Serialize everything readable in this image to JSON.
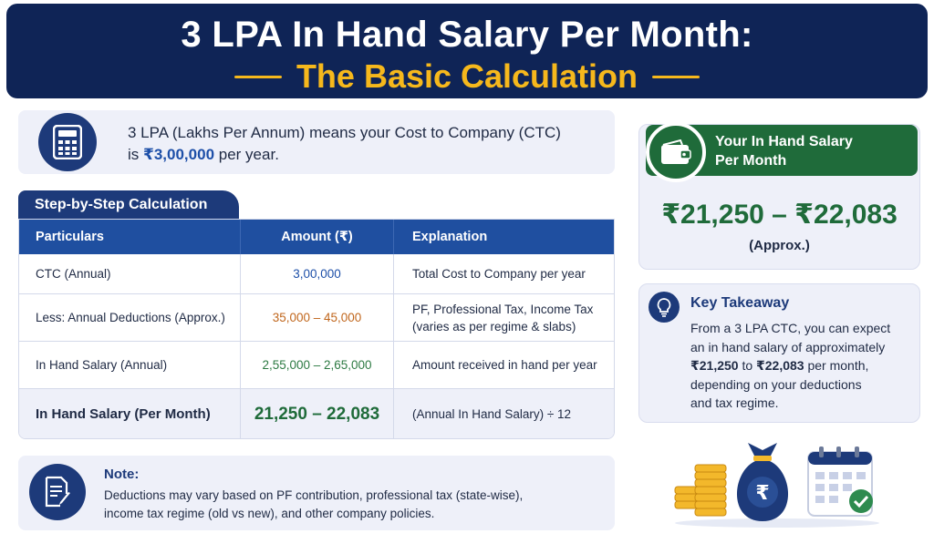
{
  "header": {
    "title": "3 LPA In Hand Salary Per Month:",
    "subtitle": "The Basic Calculation"
  },
  "intro": {
    "line1": "3 LPA (Lakhs Per Annum) means your Cost to Company (CTC)",
    "prefix": "is",
    "amount": "₹3,00,000",
    "suffix": "per year.",
    "icon": "calculator-icon"
  },
  "table": {
    "tab_label": "Step-by-Step Calculation",
    "headers": [
      "Particulars",
      "Amount (₹)",
      "Explanation"
    ],
    "rows": [
      {
        "particular": "CTC (Annual)",
        "amount": "3,00,000",
        "explanation": "Total Cost to Company per year"
      },
      {
        "particular": "Less: Annual Deductions (Approx.)",
        "amount": "35,000 – 45,000",
        "explanation_line1": "PF, Professional Tax, Income Tax",
        "explanation_line2": "(varies as per regime & slabs)"
      },
      {
        "particular": "In Hand Salary (Annual)",
        "amount": "2,55,000 – 2,65,000",
        "explanation": "Amount received in hand per year"
      },
      {
        "particular": "In Hand Salary (Per Month)",
        "amount": "21,250 – 22,083",
        "explanation": "(Annual In Hand Salary) ÷ 12"
      }
    ]
  },
  "note": {
    "title": "Note:",
    "line1": "Deductions may vary based on PF contribution, professional tax (state-wise),",
    "line2": "income tax regime (old vs new), and other company policies.",
    "icon": "document-edit-icon"
  },
  "salary_card": {
    "label_line1": "Your In Hand Salary",
    "label_line2": "Per Month",
    "range": "₹21,250 – ₹22,083",
    "approx": "(Approx.)",
    "icon": "wallet-icon"
  },
  "takeaway": {
    "title": "Key Takeaway",
    "line1": "From a 3 LPA CTC, you can expect",
    "line2": "an in hand salary of approximately",
    "amount_low": "₹21,250",
    "to": "to",
    "amount_high": "₹22,083",
    "per_month": "per month,",
    "line4": "depending on your deductions",
    "line5": "and tax regime.",
    "icon": "lightbulb-icon"
  },
  "illustration": {
    "icons": [
      "coin-stack-icon",
      "money-bag-icon",
      "calendar-check-icon"
    ],
    "bag_symbol": "₹"
  },
  "colors": {
    "navy": "#0f2456",
    "gold": "#f6b81c",
    "table_header": "#1f4fa0",
    "green": "#1f6b3a",
    "orange": "#c0661c",
    "light_panel": "#eef0f9"
  }
}
